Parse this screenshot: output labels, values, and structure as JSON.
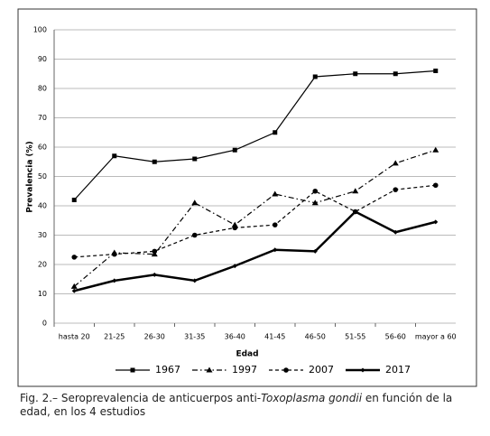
{
  "chart_data": {
    "type": "line",
    "x_label": "Edad",
    "y_label": "Prevalencia (%)",
    "categories": [
      "hasta 20",
      "21-25",
      "26-30",
      "31-35",
      "36-40",
      "41-45",
      "46-50",
      "51-55",
      "56-60",
      "mayor a 60"
    ],
    "series": [
      {
        "name": "1967",
        "color": "#000000",
        "values": [
          42,
          57,
          55,
          56,
          59,
          65,
          84,
          85,
          85,
          86
        ]
      },
      {
        "name": "1997",
        "color": "#000000",
        "values": [
          12.5,
          24,
          23.5,
          41,
          33.5,
          44,
          41,
          45,
          54.5,
          59
        ]
      },
      {
        "name": "2007",
        "color": "#000000",
        "values": [
          22.5,
          23.5,
          24.5,
          30,
          32.5,
          33.5,
          45,
          38,
          45.5,
          47
        ]
      },
      {
        "name": "2017",
        "color": "#000000",
        "values": [
          11,
          14.5,
          16.5,
          14.5,
          19.5,
          25,
          24.5,
          38,
          31,
          34.5
        ]
      }
    ],
    "ylim": [
      0,
      100
    ],
    "yticks": [
      0,
      10,
      20,
      30,
      40,
      50,
      60,
      70,
      80,
      90,
      100
    ],
    "grid": true,
    "legend": "bottom"
  },
  "caption": {
    "prefix": "Fig. 2.– Seroprevalencia de anticuerpos anti-",
    "italic": "Toxoplasma gondii",
    "suffix": " en función de la edad, en los 4 estudios"
  }
}
